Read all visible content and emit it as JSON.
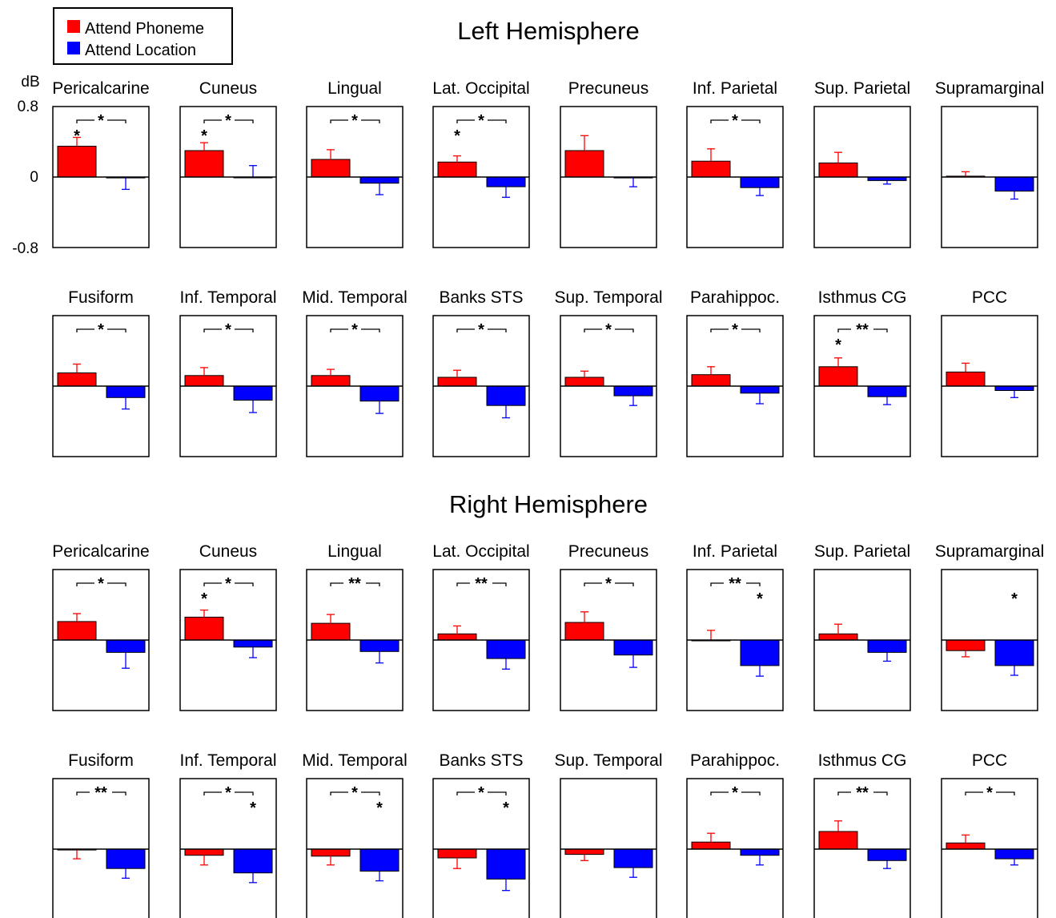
{
  "legend": {
    "items": [
      {
        "label": "Attend Phoneme",
        "color": "#ff0000"
      },
      {
        "label": "Attend Location",
        "color": "#0000ff"
      }
    ]
  },
  "axis": {
    "unit_label": "dB",
    "ticks": [
      {
        "value": 0.8,
        "label": "0.8"
      },
      {
        "value": 0,
        "label": "0"
      },
      {
        "value": -0.8,
        "label": "-0.8"
      }
    ]
  },
  "chart_data": [
    {
      "type": "bar",
      "title": "Left Hemisphere",
      "ylabel": "dB",
      "ylim": [
        -0.8,
        0.8
      ],
      "series_names": [
        "Attend Phoneme",
        "Attend Location"
      ],
      "panels": [
        {
          "title": "Pericalcarine",
          "phoneme": 0.35,
          "phoneme_err": 0.1,
          "location": -0.01,
          "location_err": 0.13,
          "bracket": "*",
          "phoneme_star": "*",
          "location_star": ""
        },
        {
          "title": "Cuneus",
          "phoneme": 0.3,
          "phoneme_err": 0.09,
          "location": 0.0,
          "location_err": 0.13,
          "bracket": "*",
          "phoneme_star": "*",
          "location_star": ""
        },
        {
          "title": "Lingual",
          "phoneme": 0.2,
          "phoneme_err": 0.11,
          "location": -0.07,
          "location_err": 0.13,
          "bracket": "*",
          "phoneme_star": "",
          "location_star": ""
        },
        {
          "title": "Lat. Occipital",
          "phoneme": 0.17,
          "phoneme_err": 0.07,
          "location": -0.11,
          "location_err": 0.12,
          "bracket": "*",
          "phoneme_star": "*",
          "location_star": ""
        },
        {
          "title": "Precuneus",
          "phoneme": 0.3,
          "phoneme_err": 0.17,
          "location": -0.01,
          "location_err": 0.1,
          "bracket": "",
          "phoneme_star": "",
          "location_star": ""
        },
        {
          "title": "Inf. Parietal",
          "phoneme": 0.18,
          "phoneme_err": 0.14,
          "location": -0.12,
          "location_err": 0.09,
          "bracket": "*",
          "phoneme_star": "",
          "location_star": ""
        },
        {
          "title": "Sup. Parietal",
          "phoneme": 0.16,
          "phoneme_err": 0.12,
          "location": -0.04,
          "location_err": 0.04,
          "bracket": "",
          "phoneme_star": "",
          "location_star": ""
        },
        {
          "title": "Supramarginal",
          "phoneme": 0.01,
          "phoneme_err": 0.05,
          "location": -0.16,
          "location_err": 0.09,
          "bracket": "",
          "phoneme_star": "",
          "location_star": ""
        },
        {
          "title": "Fusiform",
          "phoneme": 0.15,
          "phoneme_err": 0.1,
          "location": -0.13,
          "location_err": 0.13,
          "bracket": "*",
          "phoneme_star": "",
          "location_star": ""
        },
        {
          "title": "Inf. Temporal",
          "phoneme": 0.12,
          "phoneme_err": 0.09,
          "location": -0.16,
          "location_err": 0.14,
          "bracket": "*",
          "phoneme_star": "",
          "location_star": ""
        },
        {
          "title": "Mid. Temporal",
          "phoneme": 0.12,
          "phoneme_err": 0.07,
          "location": -0.17,
          "location_err": 0.14,
          "bracket": "*",
          "phoneme_star": "",
          "location_star": ""
        },
        {
          "title": "Banks STS",
          "phoneme": 0.1,
          "phoneme_err": 0.08,
          "location": -0.22,
          "location_err": 0.14,
          "bracket": "*",
          "phoneme_star": "",
          "location_star": ""
        },
        {
          "title": "Sup. Temporal",
          "phoneme": 0.1,
          "phoneme_err": 0.07,
          "location": -0.11,
          "location_err": 0.11,
          "bracket": "*",
          "phoneme_star": "",
          "location_star": ""
        },
        {
          "title": "Parahippoc.",
          "phoneme": 0.13,
          "phoneme_err": 0.09,
          "location": -0.08,
          "location_err": 0.12,
          "bracket": "*",
          "phoneme_star": "",
          "location_star": ""
        },
        {
          "title": "Isthmus CG",
          "phoneme": 0.22,
          "phoneme_err": 0.1,
          "location": -0.12,
          "location_err": 0.09,
          "bracket": "**",
          "phoneme_star": "*",
          "location_star": ""
        },
        {
          "title": "PCC",
          "phoneme": 0.16,
          "phoneme_err": 0.1,
          "location": -0.05,
          "location_err": 0.08,
          "bracket": "",
          "phoneme_star": "",
          "location_star": ""
        }
      ]
    },
    {
      "type": "bar",
      "title": "Right Hemisphere",
      "ylabel": "",
      "ylim": [
        -0.8,
        0.8
      ],
      "series_names": [
        "Attend Phoneme",
        "Attend Location"
      ],
      "panels": [
        {
          "title": "Pericalcarine",
          "phoneme": 0.21,
          "phoneme_err": 0.09,
          "location": -0.14,
          "location_err": 0.18,
          "bracket": "*",
          "phoneme_star": "",
          "location_star": ""
        },
        {
          "title": "Cuneus",
          "phoneme": 0.26,
          "phoneme_err": 0.08,
          "location": -0.08,
          "location_err": 0.12,
          "bracket": "*",
          "phoneme_star": "*",
          "location_star": ""
        },
        {
          "title": "Lingual",
          "phoneme": 0.19,
          "phoneme_err": 0.1,
          "location": -0.13,
          "location_err": 0.13,
          "bracket": "**",
          "phoneme_star": "",
          "location_star": ""
        },
        {
          "title": "Lat. Occipital",
          "phoneme": 0.07,
          "phoneme_err": 0.09,
          "location": -0.21,
          "location_err": 0.12,
          "bracket": "**",
          "phoneme_star": "",
          "location_star": ""
        },
        {
          "title": "Precuneus",
          "phoneme": 0.2,
          "phoneme_err": 0.12,
          "location": -0.17,
          "location_err": 0.14,
          "bracket": "*",
          "phoneme_star": "",
          "location_star": ""
        },
        {
          "title": "Inf. Parietal",
          "phoneme": 0.0,
          "phoneme_err": 0.11,
          "location": -0.29,
          "location_err": 0.12,
          "bracket": "**",
          "phoneme_star": "",
          "location_star": "*"
        },
        {
          "title": "Sup. Parietal",
          "phoneme": 0.07,
          "phoneme_err": 0.11,
          "location": -0.14,
          "location_err": 0.1,
          "bracket": "",
          "phoneme_star": "",
          "location_star": ""
        },
        {
          "title": "Supramarginal",
          "phoneme": -0.12,
          "phoneme_err": 0.07,
          "location": -0.29,
          "location_err": 0.11,
          "bracket": "",
          "phoneme_star": "",
          "location_star": "*"
        },
        {
          "title": "Fusiform",
          "phoneme": -0.01,
          "phoneme_err": 0.1,
          "location": -0.22,
          "location_err": 0.11,
          "bracket": "**",
          "phoneme_star": "",
          "location_star": ""
        },
        {
          "title": "Inf. Temporal",
          "phoneme": -0.07,
          "phoneme_err": 0.11,
          "location": -0.27,
          "location_err": 0.11,
          "bracket": "*",
          "phoneme_star": "",
          "location_star": "*"
        },
        {
          "title": "Mid. Temporal",
          "phoneme": -0.08,
          "phoneme_err": 0.1,
          "location": -0.25,
          "location_err": 0.11,
          "bracket": "*",
          "phoneme_star": "",
          "location_star": "*"
        },
        {
          "title": "Banks STS",
          "phoneme": -0.1,
          "phoneme_err": 0.12,
          "location": -0.34,
          "location_err": 0.13,
          "bracket": "*",
          "phoneme_star": "",
          "location_star": "*"
        },
        {
          "title": "Sup. Temporal",
          "phoneme": -0.06,
          "phoneme_err": 0.07,
          "location": -0.21,
          "location_err": 0.11,
          "bracket": "",
          "phoneme_star": "",
          "location_star": ""
        },
        {
          "title": "Parahippoc.",
          "phoneme": 0.08,
          "phoneme_err": 0.1,
          "location": -0.07,
          "location_err": 0.11,
          "bracket": "*",
          "phoneme_star": "",
          "location_star": ""
        },
        {
          "title": "Isthmus CG",
          "phoneme": 0.2,
          "phoneme_err": 0.12,
          "location": -0.13,
          "location_err": 0.09,
          "bracket": "**",
          "phoneme_star": "",
          "location_star": ""
        },
        {
          "title": "PCC",
          "phoneme": 0.07,
          "phoneme_err": 0.09,
          "location": -0.11,
          "location_err": 0.07,
          "bracket": "*",
          "phoneme_star": "",
          "location_star": ""
        }
      ]
    }
  ]
}
